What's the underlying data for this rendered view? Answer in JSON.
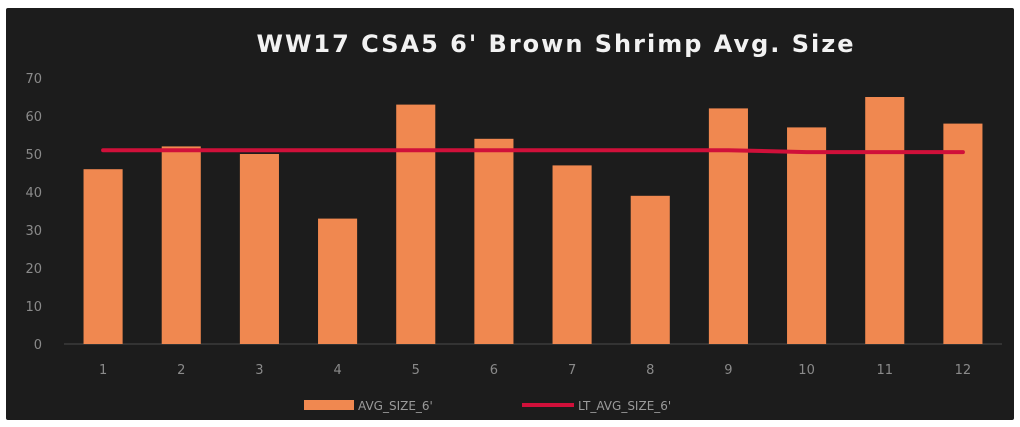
{
  "chart_data": {
    "type": "bar",
    "title": "WW17 CSA5 6' Brown Shrimp Avg. Size",
    "xlabel": "",
    "ylabel": "",
    "categories": [
      "1",
      "2",
      "3",
      "4",
      "5",
      "6",
      "7",
      "8",
      "9",
      "10",
      "11",
      "12"
    ],
    "ylim": [
      0,
      70
    ],
    "yticks": [
      "0",
      "10",
      "20",
      "30",
      "40",
      "50",
      "60",
      "70"
    ],
    "grid": false,
    "legend_position": "bottom",
    "series": [
      {
        "name": "AVG_SIZE_6'",
        "type": "bar",
        "color": "#f08850",
        "values": [
          46,
          52,
          50,
          33,
          63,
          54,
          47,
          39,
          62,
          57,
          65,
          58
        ]
      },
      {
        "name": "LT_AVG_SIZE_6'",
        "type": "line",
        "color": "#d0103a",
        "values": [
          51,
          51,
          51,
          51,
          51,
          51,
          51,
          51,
          51,
          50.5,
          50.5,
          50.5
        ]
      }
    ]
  }
}
